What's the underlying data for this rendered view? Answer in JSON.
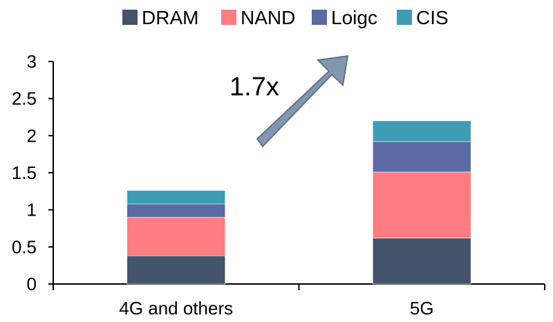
{
  "chart_data": {
    "type": "bar",
    "stacked": true,
    "categories": [
      "4G and others",
      "5G"
    ],
    "series": [
      {
        "name": "DRAM",
        "color": "#44546a",
        "values": [
          0.38,
          0.62
        ]
      },
      {
        "name": "NAND",
        "color": "#ff7c80",
        "values": [
          0.52,
          0.89
        ]
      },
      {
        "name": "Loigc",
        "color": "#5b6aa3",
        "values": [
          0.18,
          0.41
        ]
      },
      {
        "name": "CIS",
        "color": "#3e9db5",
        "values": [
          0.18,
          0.28
        ]
      }
    ],
    "ylim": [
      0,
      3
    ],
    "yticks": [
      "0",
      "0.5",
      "1",
      "1.5",
      "2",
      "2.5",
      "3"
    ],
    "title": "",
    "xlabel": "",
    "ylabel": "",
    "legend_position": "top",
    "annotation": {
      "text": "1.7x",
      "arrow_color": "#8497b0"
    }
  }
}
